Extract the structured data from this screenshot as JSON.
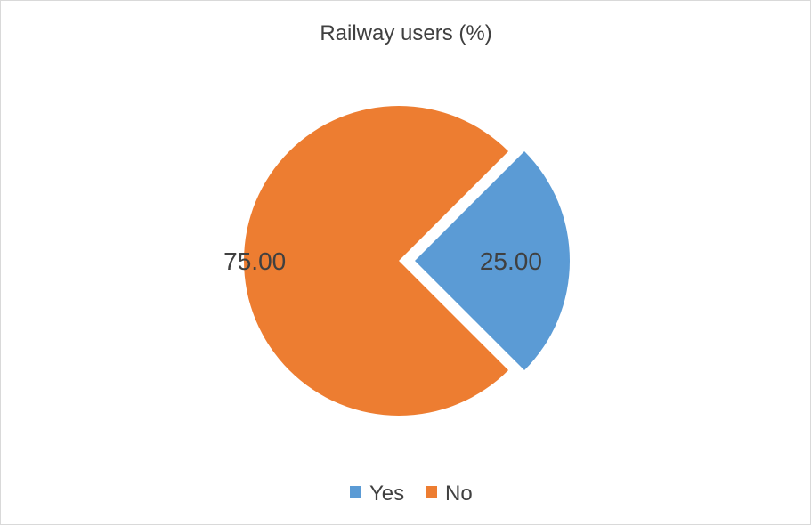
{
  "chart_data": {
    "type": "pie",
    "title": "Railway users (%)",
    "categories": [
      "Yes",
      "No"
    ],
    "values": [
      25.0,
      75.0
    ],
    "data_labels": [
      "25.00",
      "75.00"
    ],
    "colors": [
      "#5B9BD5",
      "#ED7D31"
    ],
    "exploded": "Yes",
    "start_angle_deg": 45,
    "direction": "clockwise",
    "legend_position": "bottom",
    "legend": [
      {
        "label": "Yes",
        "color": "#5B9BD5"
      },
      {
        "label": "No",
        "color": "#ED7D31"
      }
    ]
  }
}
